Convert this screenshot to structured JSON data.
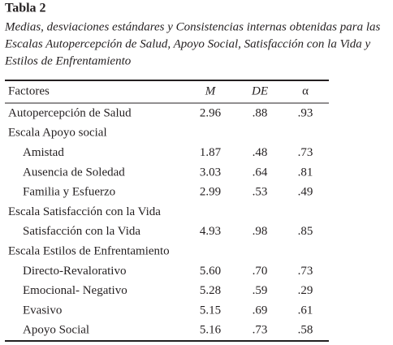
{
  "title": "Tabla 2",
  "caption": [
    "Medias, desviaciones estándares y Consistencias internas obtenidas para las",
    "Escalas Autopercepción de Salud, Apoyo Social, Satisfacción con la Vida y",
    "Estilos de Enfrentamiento"
  ],
  "table": {
    "header": [
      "Factores",
      "M",
      "DE",
      "α"
    ],
    "sections": [
      {
        "label": "Autopercepción de Salud",
        "values": [
          "2.96",
          ".88",
          ".93"
        ]
      },
      {
        "label": "Escala Apoyo social",
        "rows": [
          {
            "label": "Amistad",
            "values": [
              "1.87",
              ".48",
              ".73"
            ]
          },
          {
            "label": "Ausencia de Soledad",
            "values": [
              "3.03",
              ".64",
              ".81"
            ]
          },
          {
            "label": "Familia y Esfuerzo",
            "values": [
              "2.99",
              ".53",
              ".49"
            ]
          }
        ]
      },
      {
        "label": "Escala Satisfacción con la Vida",
        "rows": [
          {
            "label": "Satisfacción con la Vida",
            "values": [
              "4.93",
              ".98",
              ".85"
            ]
          }
        ]
      },
      {
        "label": "Escala Estilos de Enfrentamiento",
        "rows": [
          {
            "label": "Directo-Revalorativo",
            "values": [
              "5.60",
              ".70",
              ".73"
            ]
          },
          {
            "label": "Emocional- Negativo",
            "values": [
              "5.28",
              ".59",
              ".29"
            ]
          },
          {
            "label": "Evasivo",
            "values": [
              "5.15",
              ".69",
              ".61"
            ]
          },
          {
            "label": "Apoyo Social",
            "values": [
              "5.16",
              ".73",
              ".58"
            ]
          }
        ]
      }
    ]
  }
}
